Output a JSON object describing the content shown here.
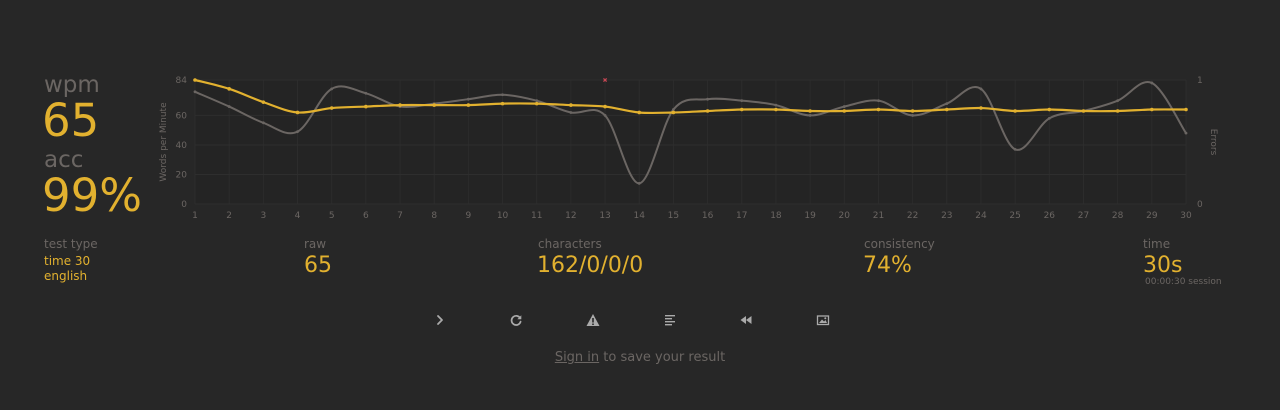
{
  "summary": {
    "wpm_label": "wpm",
    "wpm_value": "65",
    "acc_label": "acc",
    "acc_value": "99%"
  },
  "stats": {
    "test_type_label": "test type",
    "test_type_line1": "time 30",
    "test_type_line2": "english",
    "raw_label": "raw",
    "raw_value": "65",
    "characters_label": "characters",
    "characters_value": "162/0/0/0",
    "consistency_label": "consistency",
    "consistency_value": "74%",
    "time_label": "time",
    "time_value": "30s",
    "session_note": "00:00:30 session"
  },
  "actions": {
    "next_icon": "chevron-right-icon",
    "restart_icon": "refresh-icon",
    "report_icon": "warning-icon",
    "words_icon": "align-left-icon",
    "replay_icon": "rewind-icon",
    "screenshot_icon": "image-icon"
  },
  "footer": {
    "signin_link": "Sign in",
    "signin_rest": " to save your result"
  },
  "colors": {
    "background": "#272727",
    "accent": "#e2b12f",
    "muted": "#6b6663",
    "raw_line": "#6b6663",
    "error_marker": "#ca4754"
  },
  "chart_data": {
    "type": "line",
    "x": [
      1,
      2,
      3,
      4,
      5,
      6,
      7,
      8,
      9,
      10,
      11,
      12,
      13,
      14,
      15,
      16,
      17,
      18,
      19,
      20,
      21,
      22,
      23,
      24,
      25,
      26,
      27,
      28,
      29,
      30
    ],
    "y_ticks": [
      0,
      20,
      40,
      60,
      84
    ],
    "y_ticks_right": [
      0,
      1
    ],
    "ylim": [
      0,
      84
    ],
    "y2lim": [
      0,
      1
    ],
    "ylabel": "Words per Minute",
    "y2label": "Errors",
    "series": [
      {
        "role": "wpm",
        "color": "#e2b12f",
        "values": [
          84,
          78,
          69,
          62,
          65,
          66,
          67,
          67,
          67,
          68,
          68,
          67,
          66,
          62,
          62,
          63,
          64,
          64,
          63,
          63,
          64,
          63,
          64,
          65,
          63,
          64,
          63,
          63,
          64,
          64
        ]
      },
      {
        "role": "raw",
        "color": "#6b6663",
        "values": [
          76,
          66,
          55,
          49,
          78,
          75,
          66,
          68,
          71,
          74,
          70,
          62,
          60,
          14,
          64,
          71,
          70,
          67,
          60,
          66,
          70,
          60,
          68,
          78,
          37,
          58,
          63,
          70,
          82,
          48
        ]
      }
    ],
    "errors": [
      {
        "x": 13,
        "count": 1
      }
    ]
  }
}
